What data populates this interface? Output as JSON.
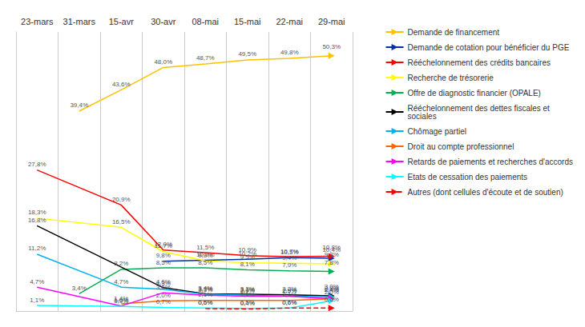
{
  "chart_data": {
    "type": "line",
    "categories": [
      "23-mars",
      "31-mars",
      "15-avr",
      "30-avr",
      "08-mai",
      "15-mai",
      "22-mai",
      "29-mai"
    ],
    "series": [
      {
        "name": "Demande de financement",
        "color": "#FFC000",
        "line_style": "solid",
        "marker": "triangle",
        "values": [
          null,
          39.4,
          43.6,
          48.0,
          48.7,
          49.5,
          49.8,
          50.3
        ],
        "value_labels": [
          null,
          "39,4%",
          "43,6%",
          "48,0%",
          "48,7%",
          "49,5%",
          "49,8%",
          "50,3%"
        ]
      },
      {
        "name": "Demande de cotation pour bénéficier du PGE",
        "color": "#002FA7",
        "line_style": "solid",
        "marker": "triangle",
        "values": [
          null,
          null,
          null,
          9.8,
          10.0,
          10.2,
          10.5,
          10.4
        ],
        "value_labels": [
          null,
          null,
          null,
          "9,8%",
          "10,0%",
          "10,2%",
          "10,5%",
          "10,4%"
        ]
      },
      {
        "name": "Rééchelonnement des crédits bancaires",
        "color": "#FF0000",
        "line_style": "solid",
        "marker": "triangle",
        "values": [
          27.8,
          null,
          20.9,
          12.0,
          11.5,
          10.9,
          10.7,
          10.8
        ],
        "value_labels": [
          "27,8%",
          null,
          "20,9%",
          "12,0%",
          "11,5%",
          "10,9%",
          "10,7%",
          "10,8%"
        ]
      },
      {
        "name": "Recherche de trésorerie",
        "color": "#FFFF00",
        "line_style": "solid",
        "marker": "triangle",
        "values": [
          18.3,
          null,
          16.5,
          11.7,
          9.9,
          9.5,
          9.4,
          9.3
        ],
        "value_labels": [
          "18,3%",
          null,
          "16,5%",
          "11,7%",
          "9,9%",
          "9,5%",
          "9,4%",
          "9,3%"
        ]
      },
      {
        "name": "Offre de diagnostic financier (OPALE)",
        "color": "#00B050",
        "line_style": "solid",
        "marker": "triangle",
        "values": [
          null,
          3.4,
          8.2,
          8.5,
          8.5,
          8.1,
          7.9,
          7.8
        ],
        "value_labels": [
          null,
          "3,4%",
          "8,2%",
          "8,5%",
          "8,5%",
          "8,1%",
          "7,9%",
          "7,8%"
        ]
      },
      {
        "name": "Rééchelonnement des dettes fiscales et\nsociales",
        "color": "#000000",
        "line_style": "solid",
        "marker": "triangle",
        "values": [
          16.8,
          null,
          null,
          4.6,
          3.4,
          3.3,
          3.2,
          3.0
        ],
        "value_labels": [
          "16,8%",
          null,
          null,
          "4,6%",
          "3,4%",
          "3,3%",
          "3,2%",
          "3,0%"
        ]
      },
      {
        "name": "Chômage partiel",
        "color": "#00B0F0",
        "line_style": "solid",
        "marker": "triangle",
        "values": [
          11.2,
          null,
          4.7,
          4.3,
          3.3,
          3.1,
          2.9,
          2.8
        ],
        "value_labels": [
          "11,2%",
          null,
          "4,7%",
          "4,3%",
          "3,3%",
          "3,1%",
          "2,9%",
          "2,8%"
        ]
      },
      {
        "name": "Droit au compte professionnel",
        "color": "#FF6600",
        "line_style": "solid",
        "marker": "triangle",
        "values": [
          null,
          null,
          1.4,
          2.0,
          2.1,
          2.1,
          2.1,
          2.4
        ],
        "value_labels": [
          null,
          null,
          "1,4%",
          "2,0%",
          "2,1%",
          "2,1%",
          "2,1%",
          "2,4%"
        ]
      },
      {
        "name": "Retards de paiements et recherches d'accords",
        "color": "#FF00FF",
        "line_style": "solid",
        "marker": "triangle",
        "values": [
          4.7,
          null,
          1.0,
          3.6,
          3.1,
          2.9,
          2.9,
          2.4
        ],
        "value_labels": [
          "4,7%",
          null,
          "1,0%",
          "3,6%",
          "3,1%",
          "2,9%",
          "2,9%",
          "2,4%"
        ]
      },
      {
        "name": "Etats de cessation des paiements",
        "color": "#00FFFF",
        "line_style": "solid",
        "marker": "triangle",
        "values": [
          1.1,
          null,
          0.9,
          0.7,
          0.6,
          0.5,
          0.6,
          2.0
        ],
        "value_labels": [
          "1,1%",
          null,
          "0,9%",
          "0,7%",
          "0,6%",
          "0,5%",
          "0,6%",
          "2,0%"
        ]
      },
      {
        "name": "Autres (dont cellules d'écoute et de soutien)",
        "color": "#FF0000",
        "line_style": "dashed",
        "marker": "triangle",
        "values": [
          null,
          null,
          null,
          null,
          0.5,
          0.4,
          0.6,
          0.6
        ],
        "value_labels": [
          null,
          null,
          null,
          null,
          "0,5%",
          "0,4%",
          "0,6%",
          "0,6%"
        ]
      }
    ],
    "ylim": [
      0,
      55
    ],
    "tick_labels": "x",
    "grid": "x",
    "legend": "upper right",
    "data_labels": true
  }
}
